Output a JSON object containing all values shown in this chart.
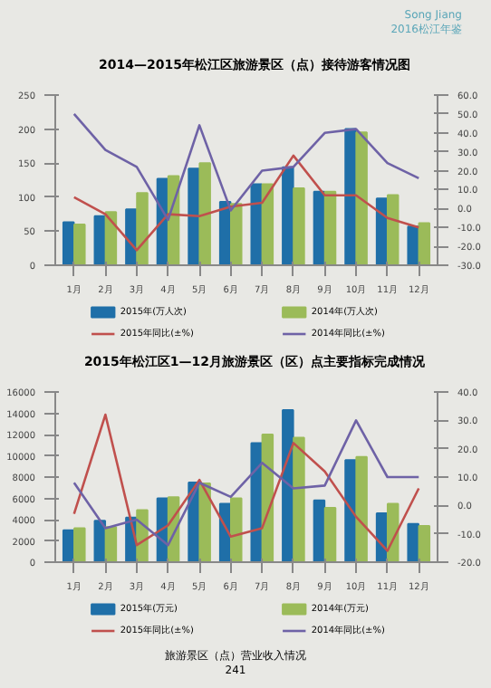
{
  "chart_data": [
    {
      "type": "bar",
      "title": "2014—2015年松江区旅游景区（点）接待游客情况图",
      "annotations": [
        "Song Jiang",
        "2016松江年鉴"
      ],
      "categories": [
        "1月",
        "2月",
        "3月",
        "4月",
        "5月",
        "6月",
        "7月",
        "8月",
        "9月",
        "10月",
        "11月",
        "12月"
      ],
      "series": [
        {
          "name": "2015年(万人次)",
          "color": "#1f6fa8",
          "values": [
            63,
            72,
            82,
            127,
            142,
            93,
            119,
            144,
            108,
            200,
            98,
            57
          ]
        },
        {
          "name": "2014年(万人次)",
          "color": "#9bbb59",
          "values": [
            60,
            78,
            106,
            131,
            150,
            90,
            119,
            113,
            108,
            195,
            103,
            62
          ]
        },
        {
          "name": "2015年同比(±%)",
          "type": "line",
          "axis": "y2",
          "color": "#c0504d",
          "values": [
            6,
            -3,
            -22,
            -3,
            -4,
            1,
            3,
            28,
            7,
            7,
            -5,
            -10
          ]
        },
        {
          "name": "2014年同比(±%)",
          "type": "line",
          "axis": "y2",
          "color": "#6e62a6",
          "values": [
            50,
            31,
            22,
            -6,
            44,
            -1,
            20,
            22,
            40,
            42,
            24,
            16
          ]
        }
      ],
      "ylim": [
        0,
        250
      ],
      "yticks": [
        0,
        50,
        100,
        150,
        200,
        250
      ],
      "y2lim": [
        -30,
        60
      ],
      "y2ticks": [
        {
          "value": -30,
          "label": "-30.0"
        },
        {
          "value": -20,
          "label": "-20.0"
        },
        {
          "value": -10,
          "label": "-10.0"
        },
        {
          "value": 0,
          "label": "0.0"
        },
        {
          "value": 10,
          "label": "10.0"
        },
        {
          "value": 20,
          "label": "20.0"
        },
        {
          "value": 30,
          "label": "30.0"
        },
        {
          "value": 40,
          "label": "40.0"
        },
        {
          "value": 50,
          "label": "50.0"
        },
        {
          "value": 60,
          "label": "60.0"
        }
      ],
      "legend": "bottom"
    },
    {
      "type": "bar",
      "title": "2015年松江区1—12月旅游景区（区）点主要指标完成情况",
      "annotations": [
        "旅游景区（点）营业收入情况",
        "241"
      ],
      "categories": [
        "1月",
        "2月",
        "3月",
        "4月",
        "5月",
        "6月",
        "7月",
        "8月",
        "9月",
        "10月",
        "11月",
        "12月"
      ],
      "series": [
        {
          "name": "2015年(万元)",
          "color": "#1f6fa8",
          "values": [
            3000,
            3900,
            4200,
            6000,
            7500,
            5500,
            11200,
            14300,
            5800,
            9600,
            4600,
            3600
          ]
        },
        {
          "name": "2014年(万元)",
          "color": "#9bbb59",
          "values": [
            3200,
            3300,
            4900,
            6100,
            7400,
            6000,
            12000,
            11700,
            5100,
            9900,
            5500,
            3400
          ]
        },
        {
          "name": "2015年同比(±%)",
          "type": "line",
          "axis": "y2",
          "color": "#c0504d",
          "values": [
            -3,
            32,
            -14,
            -7,
            9,
            -11,
            -8,
            22,
            12,
            -4,
            -16,
            6
          ]
        },
        {
          "name": "2014年同比(±%)",
          "type": "line",
          "axis": "y2",
          "color": "#6e62a6",
          "values": [
            8,
            -8,
            -5,
            -14,
            8,
            3,
            15,
            6,
            7,
            30,
            10,
            10
          ]
        }
      ],
      "ylim": [
        0,
        16000
      ],
      "yticks": [
        0,
        2000,
        4000,
        6000,
        8000,
        10000,
        12000,
        14000,
        16000
      ],
      "y2lim": [
        -20,
        40
      ],
      "y2ticks": [
        {
          "value": -20,
          "label": "-20.0"
        },
        {
          "value": -10,
          "label": "-10.0"
        },
        {
          "value": 0,
          "label": "0.0"
        },
        {
          "value": 10,
          "label": "10.0"
        },
        {
          "value": 20,
          "label": "20.0"
        },
        {
          "value": 30,
          "label": "30.0"
        },
        {
          "value": 40,
          "label": "40.0"
        }
      ],
      "legend": "bottom"
    }
  ]
}
